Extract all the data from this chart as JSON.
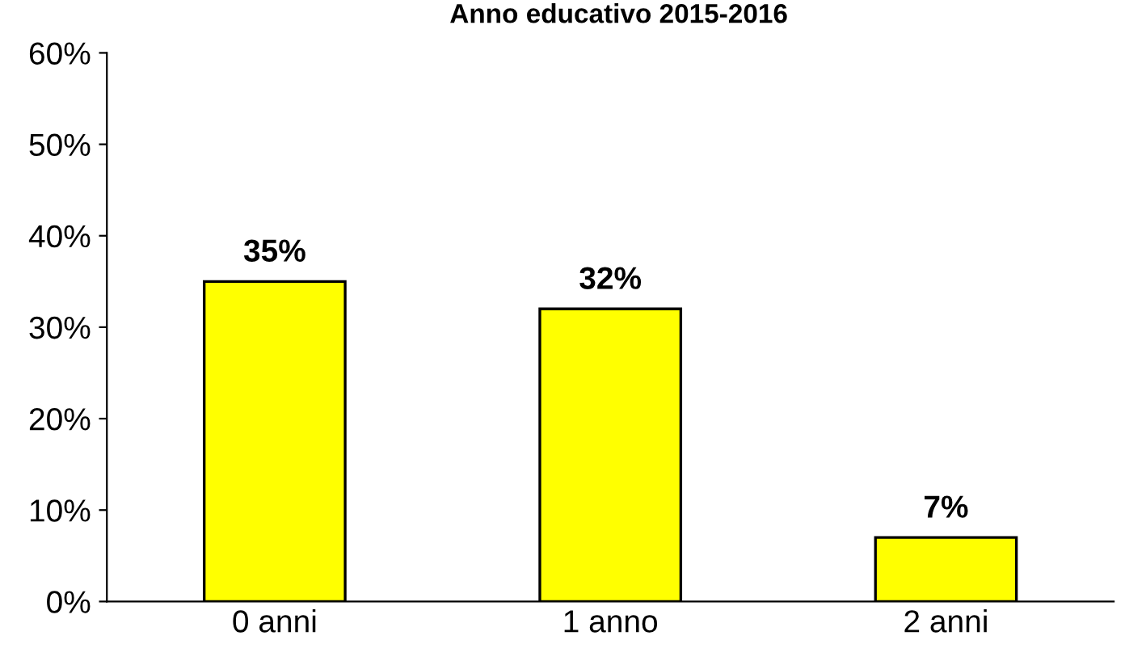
{
  "chart_data": {
    "type": "bar",
    "title": "Anno educativo 2015-2016",
    "categories": [
      "0 anni",
      "1 anno",
      "2 anni"
    ],
    "values": [
      35,
      32,
      7
    ],
    "color": "#ffff00",
    "value_labels": [
      "35%",
      "32%",
      "7%"
    ],
    "ylim": [
      0,
      60
    ],
    "yticks": [
      {
        "value": 0,
        "label": "0%"
      },
      {
        "value": 10,
        "label": "10%"
      },
      {
        "value": 20,
        "label": "20%"
      },
      {
        "value": 30,
        "label": "30%"
      },
      {
        "value": 40,
        "label": "40%"
      },
      {
        "value": 50,
        "label": "50%"
      },
      {
        "value": 60,
        "label": "60%"
      }
    ],
    "grid": false
  }
}
